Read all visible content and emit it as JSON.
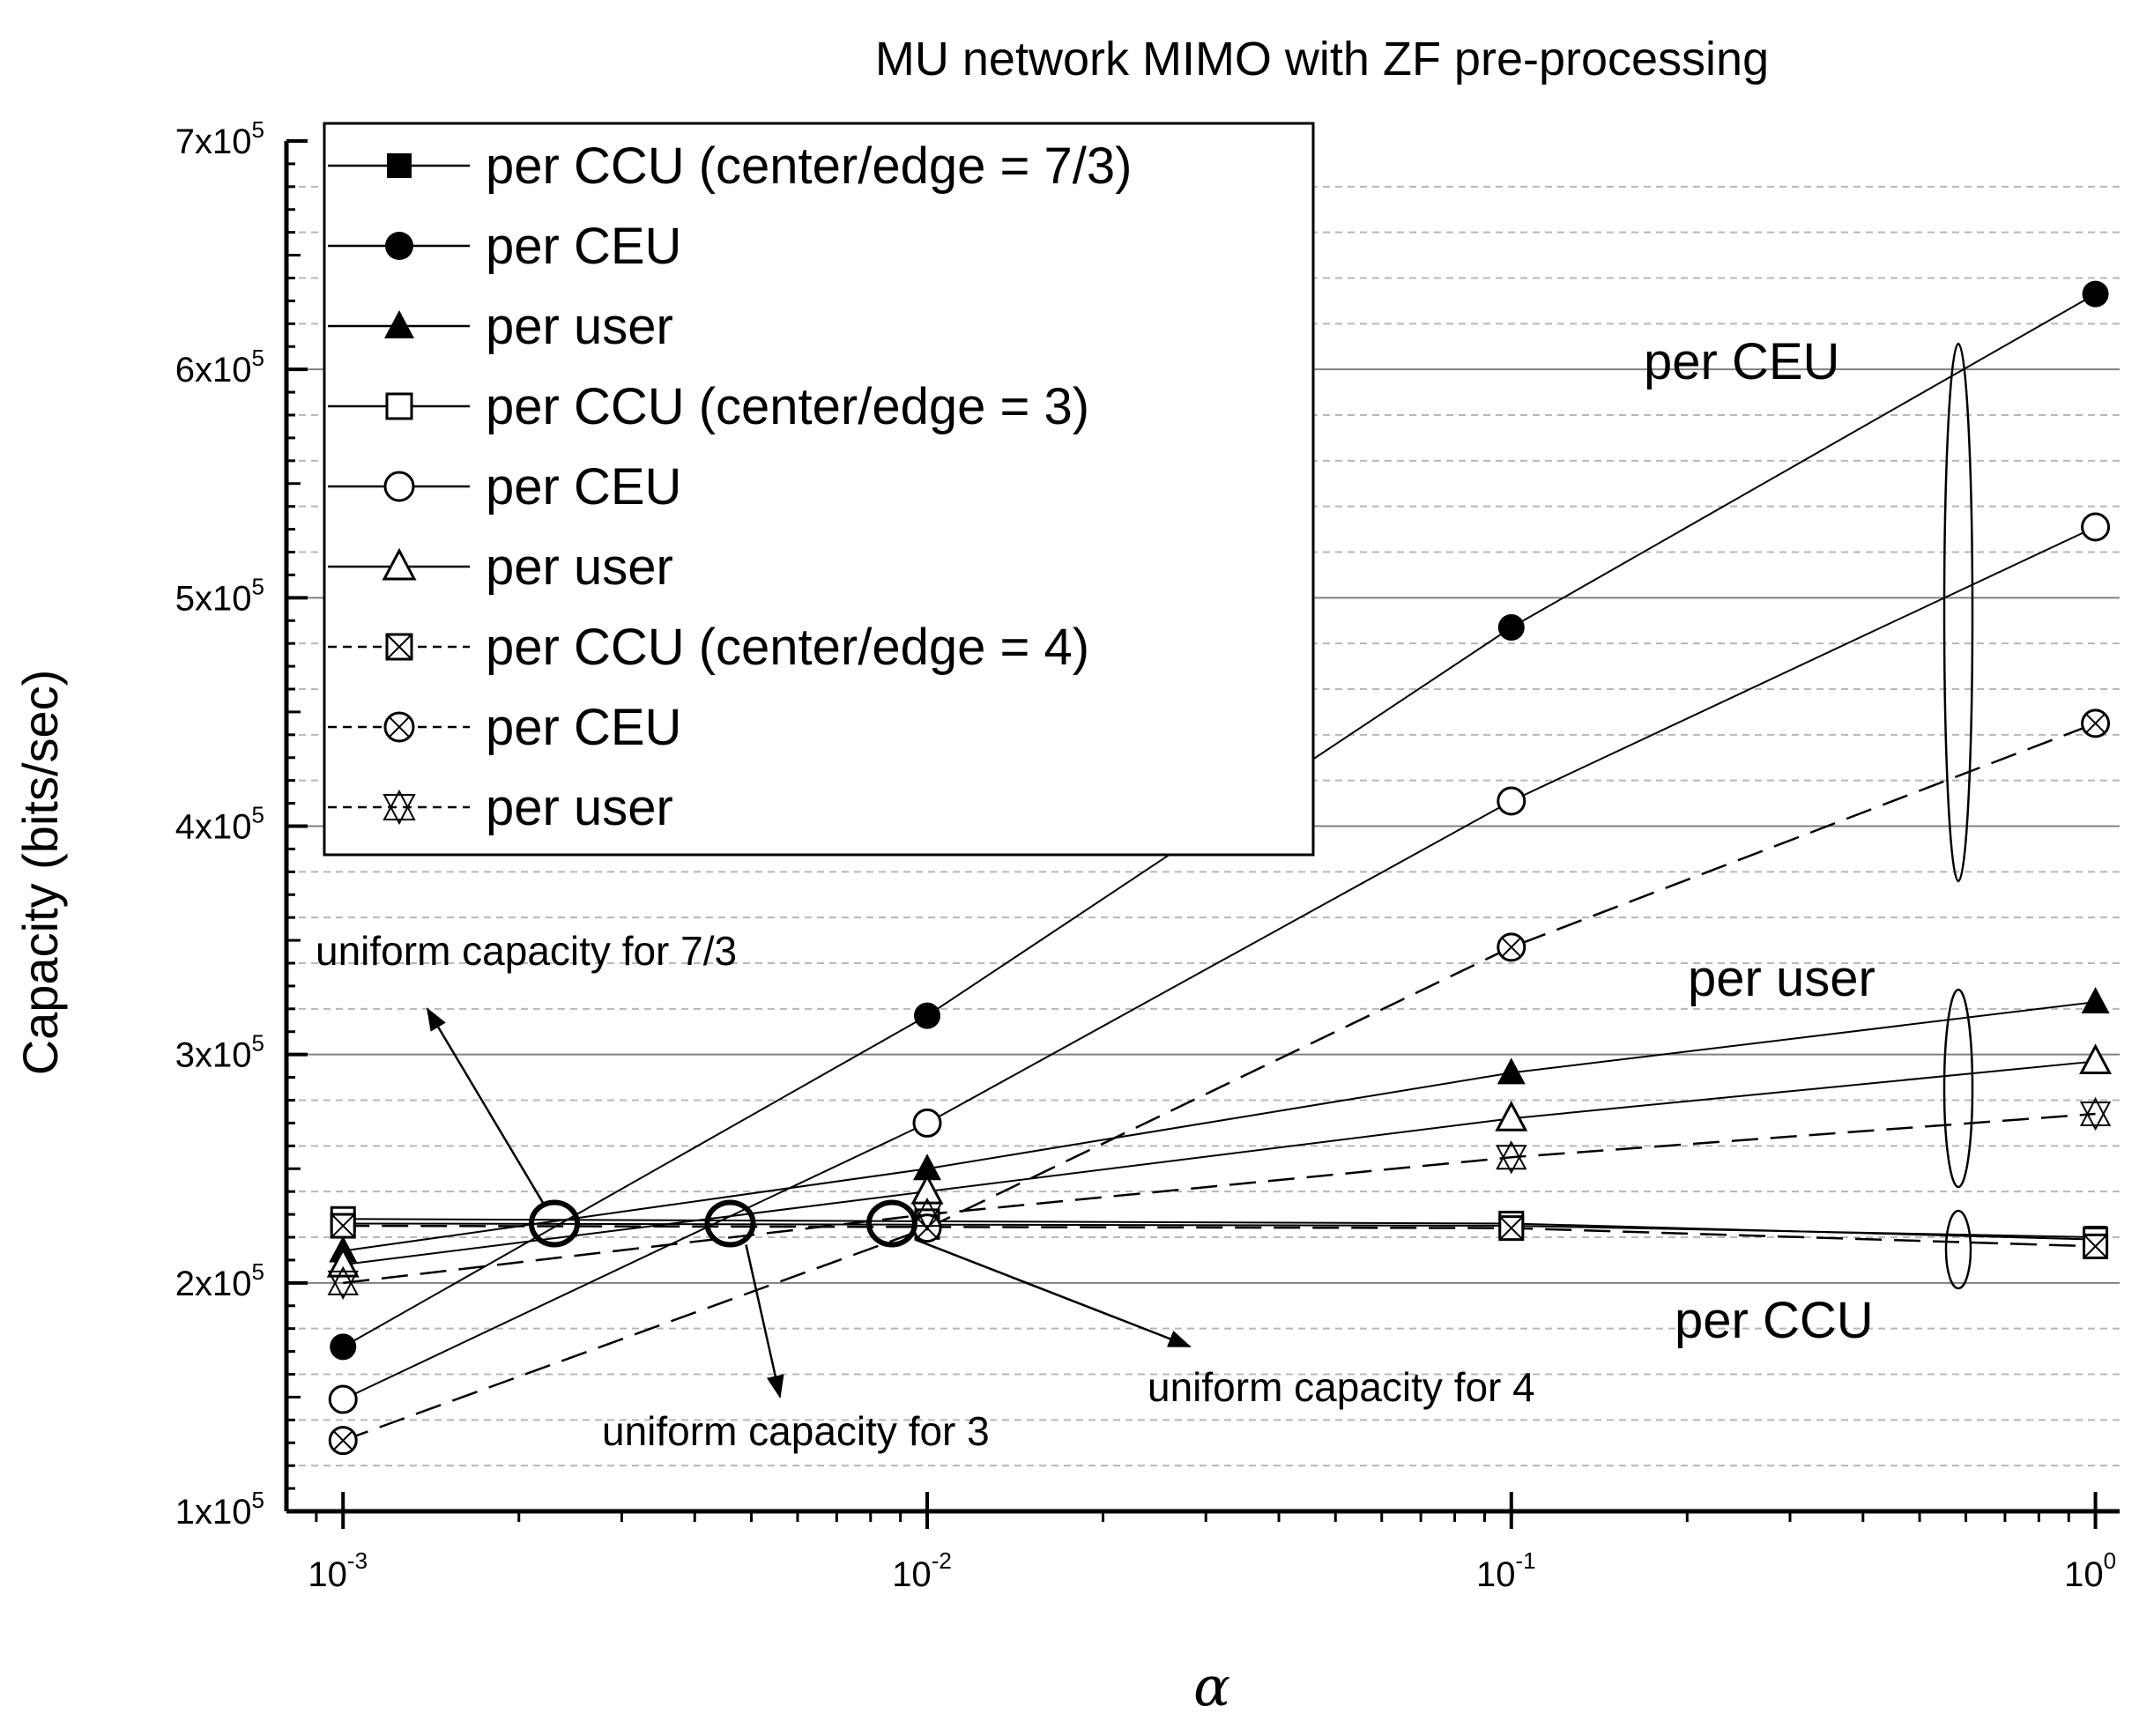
{
  "chart_data": {
    "type": "line",
    "title": "MU network MIMO with ZF pre-processing",
    "xlabel": "α",
    "ylabel": "Capacity (bits/sec)",
    "xscale": "log",
    "xlim": [
      0.0008,
      1.1
    ],
    "ylim": [
      100000,
      700000
    ],
    "x": [
      0.001,
      0.01,
      0.1,
      1
    ],
    "x_tick_values": [
      0.001,
      0.01,
      0.1,
      1
    ],
    "x_tick_labels": [
      {
        "base": "10",
        "exp": "-3"
      },
      {
        "base": "10",
        "exp": "-2"
      },
      {
        "base": "10",
        "exp": "-1"
      },
      {
        "base": "10",
        "exp": "0"
      }
    ],
    "y_tick_values": [
      100000,
      200000,
      300000,
      400000,
      500000,
      600000,
      700000
    ],
    "y_tick_labels": [
      {
        "mant": "1x10",
        "exp": "5"
      },
      {
        "mant": "2x10",
        "exp": "5"
      },
      {
        "mant": "3x10",
        "exp": "5"
      },
      {
        "mant": "4x10",
        "exp": "5"
      },
      {
        "mant": "5x10",
        "exp": "5"
      },
      {
        "mant": "6x10",
        "exp": "5"
      },
      {
        "mant": "7x10",
        "exp": "5"
      }
    ],
    "grid": {
      "major": true,
      "minor": true
    },
    "legend_position": "top-left",
    "series": [
      {
        "name": "per CCU (center/edge = 7/3)",
        "values": [
          226000,
          225500,
          225000,
          220000
        ],
        "marker": "square-filled",
        "line": "solid"
      },
      {
        "name": "per CEU",
        "values": [
          172000,
          317000,
          487000,
          633000
        ],
        "marker": "circle-filled",
        "line": "solid"
      },
      {
        "name": "per user",
        "values": [
          214000,
          250000,
          292000,
          323000
        ],
        "marker": "triangle-filled",
        "line": "solid"
      },
      {
        "name": "per CCU (center/edge = 3)",
        "values": [
          228000,
          227000,
          226000,
          219000
        ],
        "marker": "square-open",
        "line": "solid"
      },
      {
        "name": "per CEU",
        "values": [
          149000,
          270000,
          411000,
          531000
        ],
        "marker": "circle-open",
        "line": "solid"
      },
      {
        "name": "per user",
        "values": [
          208000,
          240000,
          272000,
          297000
        ],
        "marker": "triangle-open",
        "line": "solid"
      },
      {
        "name": "per CCU (center/edge = 4)",
        "values": [
          225000,
          224500,
          224000,
          216000
        ],
        "marker": "square-x",
        "line": "dashed"
      },
      {
        "name": "per CEU",
        "values": [
          131000,
          224000,
          347000,
          445000
        ],
        "marker": "circle-x",
        "line": "dashed"
      },
      {
        "name": "per user",
        "values": [
          200000,
          230000,
          255000,
          274000
        ],
        "marker": "star",
        "line": "dashed"
      }
    ],
    "uniform_points": [
      {
        "x": 0.0023,
        "y": 226000
      },
      {
        "x": 0.0046,
        "y": 226000
      },
      {
        "x": 0.0087,
        "y": 226000
      }
    ],
    "annotations": [
      {
        "text": "uniform capacity for 7/3"
      },
      {
        "text": "uniform capacity for 3"
      },
      {
        "text": "uniform capacity for 4"
      }
    ],
    "group_labels": [
      {
        "text": "per CEU"
      },
      {
        "text": "per user"
      },
      {
        "text": "per CCU"
      }
    ]
  }
}
